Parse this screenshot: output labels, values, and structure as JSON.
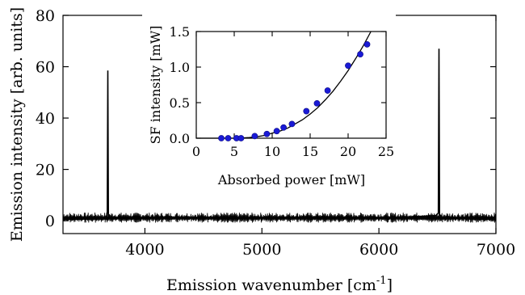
{
  "chart_data": [
    {
      "type": "line",
      "title": "",
      "xlabel": "Emission wavenumber [cm",
      "xlabel_sup": "-1",
      "xlabel_suffix": "]",
      "ylabel": "Emission intensity [arb. units]",
      "xlim": [
        3300,
        7000
      ],
      "ylim": [
        -5,
        80
      ],
      "xticks": [
        4000,
        5000,
        6000,
        7000
      ],
      "yticks": [
        0,
        20,
        40,
        60,
        80
      ],
      "grid": false,
      "legend": "none",
      "series": [
        {
          "x": [
            3300,
            3670,
            3678,
            3683,
            3688,
            3700,
            4000,
            4120,
            4800,
            5480,
            6000,
            6485,
            6508,
            6513,
            6518,
            6540,
            7000
          ],
          "y": [
            0.5,
            0.8,
            3.5,
            58.5,
            2.5,
            1.0,
            1.0,
            1.5,
            1.0,
            1.5,
            1.0,
            2.0,
            3.0,
            67.0,
            2.5,
            1.0,
            0.5
          ]
        }
      ]
    },
    {
      "type": "scatter",
      "title": "",
      "xlabel": "Absorbed power [mW]",
      "ylabel": "SF intensity [mW]",
      "xlim": [
        0,
        25
      ],
      "ylim": [
        0,
        1.5
      ],
      "xticks": [
        0,
        5,
        10,
        15,
        20,
        25
      ],
      "yticks": [
        0.0,
        0.5,
        1.0,
        1.5
      ],
      "ytick_labels": [
        "0.0",
        "0.5",
        "1.0",
        "1.5"
      ],
      "grid": false,
      "legend": "none",
      "marker_color": "#1a1ad6",
      "series": [
        {
          "x": [
            3.3,
            4.2,
            5.3,
            5.9,
            7.7,
            9.3,
            10.6,
            11.5,
            12.6,
            14.5,
            15.9,
            17.3,
            20.0,
            21.6,
            22.5
          ],
          "y": [
            0.0,
            0.0,
            0.0,
            0.0,
            0.03,
            0.06,
            0.1,
            0.15,
            0.2,
            0.38,
            0.49,
            0.67,
            1.02,
            1.18,
            1.32
          ]
        }
      ],
      "fit": {
        "x": [
          0,
          5.5,
          7,
          8,
          9,
          10,
          11,
          12,
          13,
          14,
          15,
          16,
          17,
          18,
          19,
          20,
          21,
          22,
          23,
          23.9
        ],
        "y": [
          0,
          0,
          0.01,
          0.02,
          0.04,
          0.07,
          0.1,
          0.14,
          0.2,
          0.26,
          0.34,
          0.43,
          0.54,
          0.66,
          0.8,
          0.95,
          1.12,
          1.3,
          1.5,
          1.67
        ]
      }
    }
  ]
}
